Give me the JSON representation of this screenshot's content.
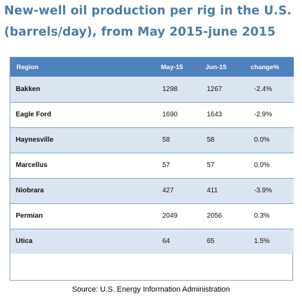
{
  "title_line1": "New-well oil production per rig in the U.S.",
  "title_line2": "(barrels/day), from   May 2015-june 2015",
  "source": "Source: U.S. Energy Information Administration",
  "colors": {
    "title": "#4a7ea6",
    "header_bg": "#4f81bd",
    "band": "#dbe5f1",
    "border": "#7ea9c9"
  },
  "chart_data": {
    "type": "table",
    "columns": [
      "Region",
      "May-15",
      "Jun-15",
      "change%"
    ],
    "rows": [
      {
        "region": "Bakken",
        "may": "1298",
        "jun": "1267",
        "change": "-2.4%"
      },
      {
        "region": "Eagle Ford",
        "may": "1690",
        "jun": "1643",
        "change": "-2.9%"
      },
      {
        "region": "Haynesville",
        "may": "58",
        "jun": "58",
        "change": "0.0%"
      },
      {
        "region": "Marcellus",
        "may": "57",
        "jun": "57",
        "change": "0.0%"
      },
      {
        "region": "Niobrara",
        "may": "427",
        "jun": "411",
        "change": "-3.9%"
      },
      {
        "region": "Permian",
        "may": "2049",
        "jun": "2056",
        "change": "0.3%"
      },
      {
        "region": "Utica",
        "may": "64",
        "jun": "65",
        "change": "1.5%"
      }
    ]
  }
}
